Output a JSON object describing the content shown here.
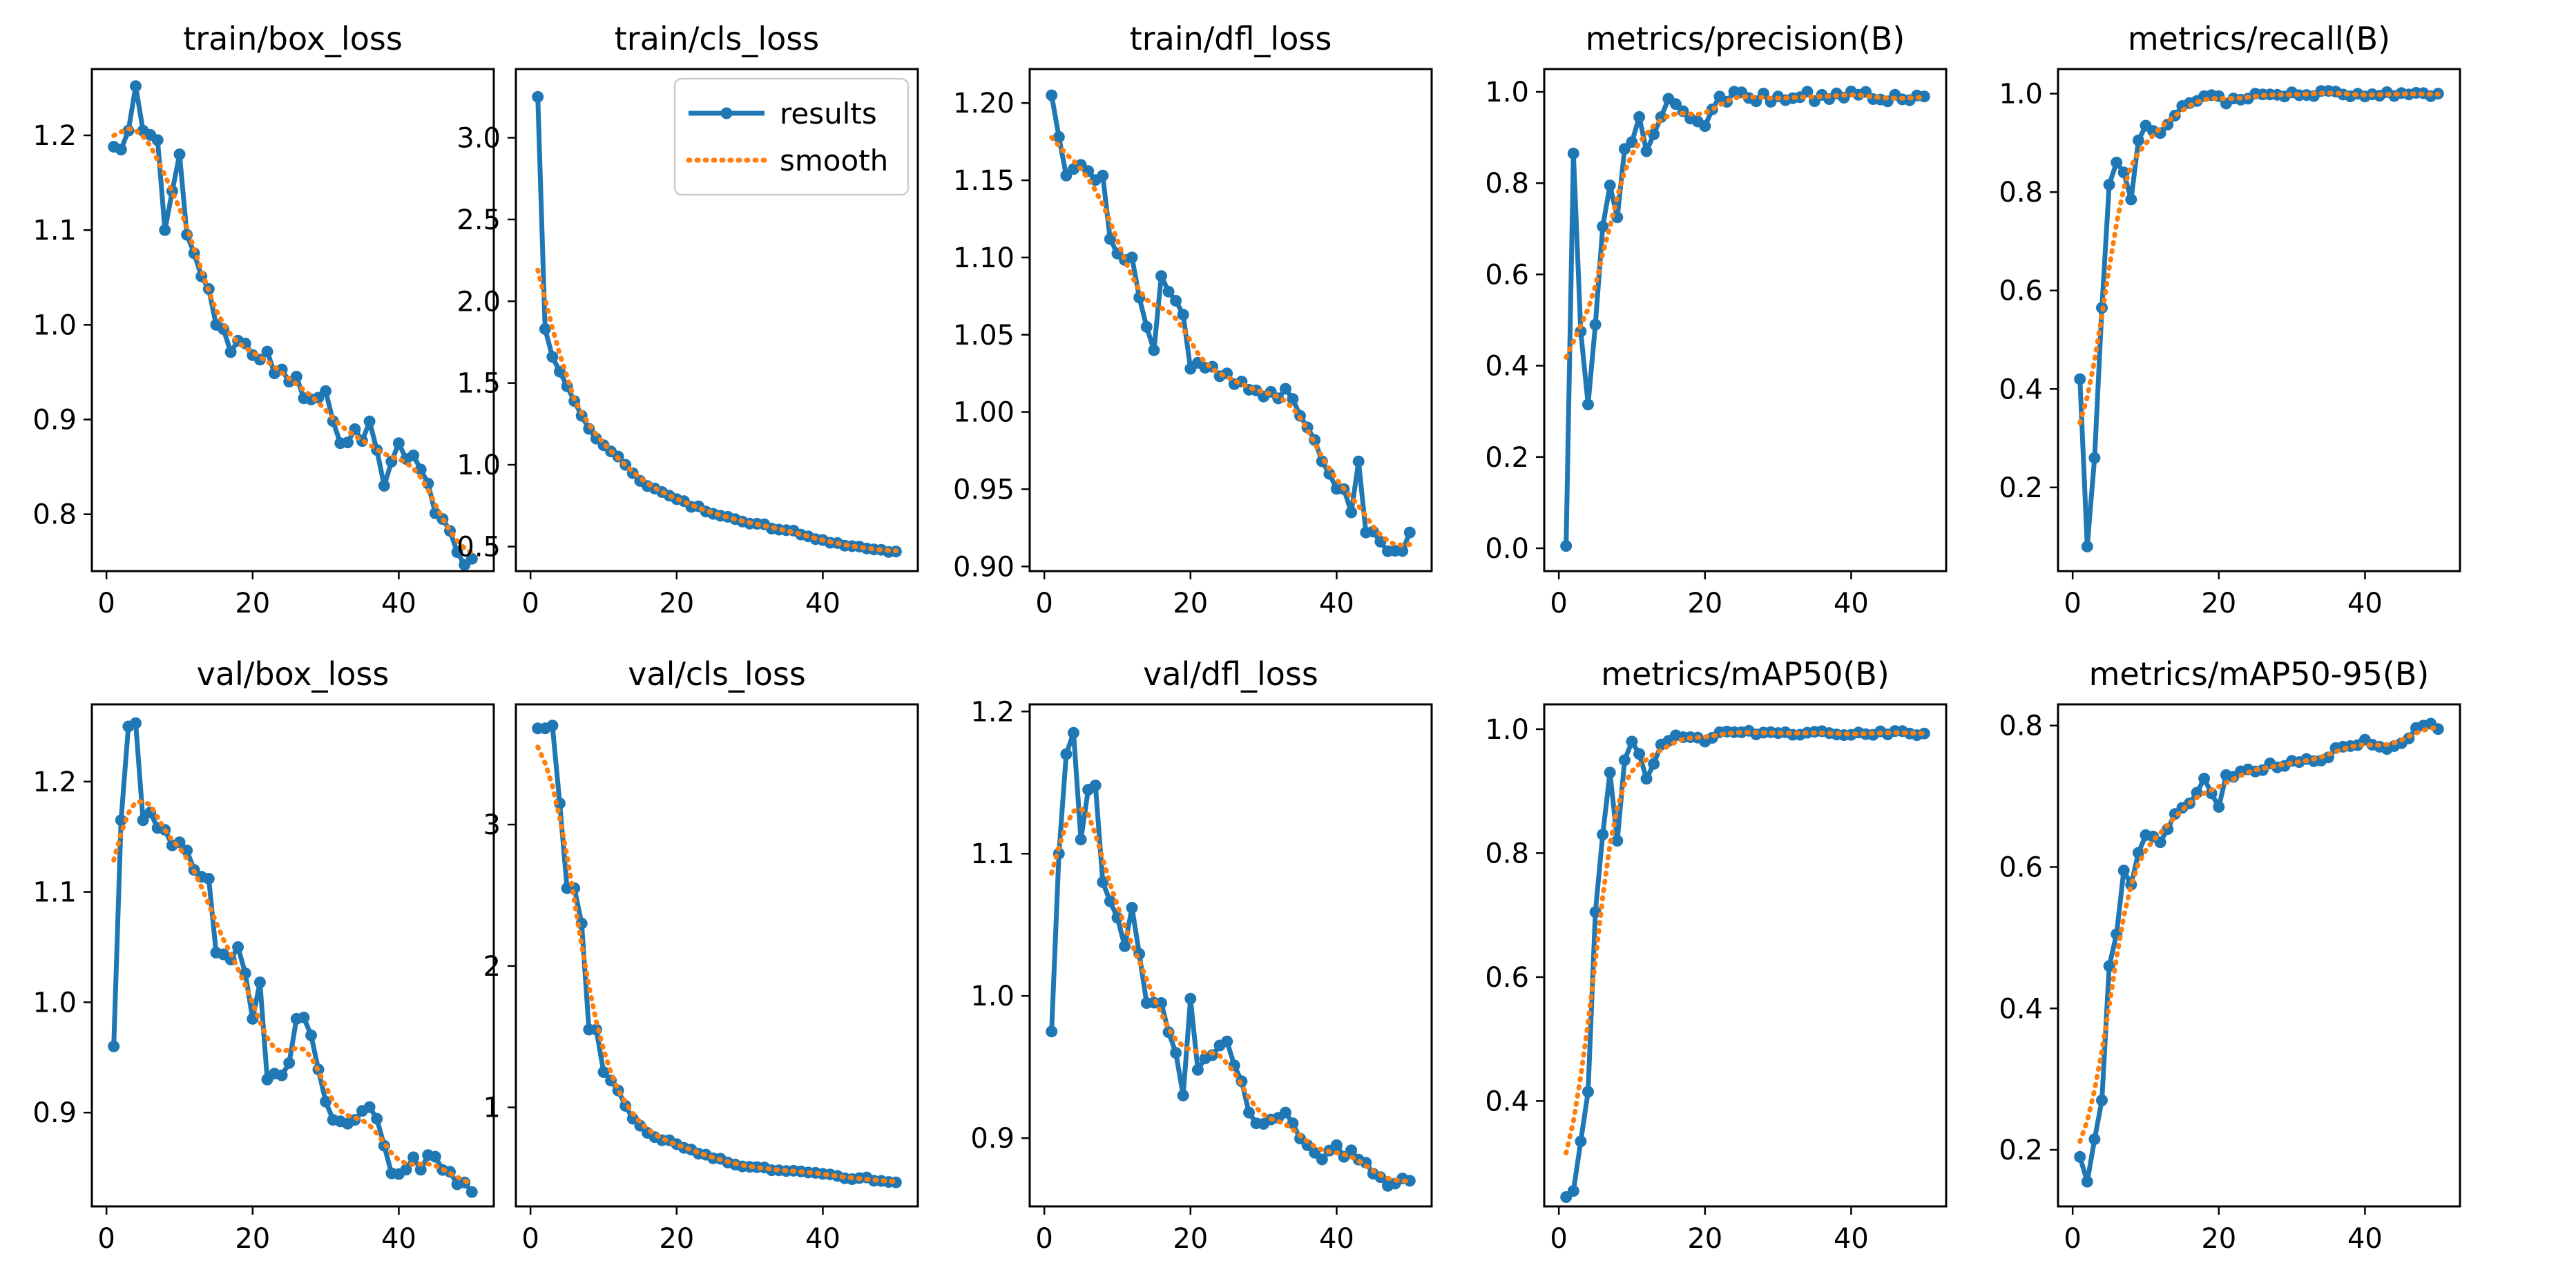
{
  "figure": {
    "rows": 2,
    "cols": 5
  },
  "legend": {
    "entries": [
      "results",
      "smooth"
    ],
    "placement": "top-right",
    "panel": "train/cls_loss"
  },
  "colors": {
    "results": "#1f77b4",
    "smooth": "#ff7f0e",
    "axes": "#000000",
    "background": "#ffffff"
  },
  "chart_data": [
    {
      "type": "line",
      "title": "train/box_loss",
      "xlabel": "",
      "ylabel": "",
      "xlim": [
        -2,
        53
      ],
      "ylim": [
        0.74,
        1.27
      ],
      "xticks": [
        0,
        20,
        40
      ],
      "yticks": [
        0.8,
        0.9,
        1.0,
        1.1,
        1.2
      ],
      "xtick_labels": [
        "0",
        "20",
        "40"
      ],
      "ytick_labels": [
        "0.8",
        "0.9",
        "1.0",
        "1.1",
        "1.2"
      ],
      "start": [
        1,
        1.188
      ],
      "end": [
        50,
        0.753
      ],
      "noise": 0.02,
      "smooth_offset": 0.0,
      "seed": 11,
      "anchors": [
        [
          2,
          1.185
        ],
        [
          3,
          1.205
        ],
        [
          4,
          1.252
        ],
        [
          5,
          1.205
        ],
        [
          7,
          1.195
        ],
        [
          8,
          1.1
        ],
        [
          10,
          1.18
        ],
        [
          11,
          1.095
        ],
        [
          15,
          1.0
        ],
        [
          25,
          0.94
        ],
        [
          30,
          0.93
        ],
        [
          32,
          0.875
        ],
        [
          36,
          0.898
        ],
        [
          38,
          0.83
        ],
        [
          40,
          0.875
        ],
        [
          46,
          0.795
        ],
        [
          48,
          0.76
        ]
      ]
    },
    {
      "type": "line",
      "title": "train/cls_loss",
      "xlabel": "",
      "ylabel": "",
      "xlim": [
        -2,
        53
      ],
      "ylim": [
        0.35,
        3.42
      ],
      "xticks": [
        0,
        20,
        40
      ],
      "yticks": [
        0.5,
        1.0,
        1.5,
        2.0,
        2.5,
        3.0
      ],
      "xtick_labels": [
        "0",
        "20",
        "40"
      ],
      "ytick_labels": [
        "0.5",
        "1.0",
        "1.5",
        "2.0",
        "2.5",
        "3.0"
      ],
      "start": [
        1,
        3.25
      ],
      "end": [
        50,
        0.47
      ],
      "noise": 0.012,
      "smooth_offset": 0.0,
      "seed": 12,
      "anchors": [
        [
          2,
          1.83
        ],
        [
          3,
          1.66
        ],
        [
          4,
          1.57
        ],
        [
          5,
          1.48
        ],
        [
          6,
          1.39
        ],
        [
          8,
          1.22
        ],
        [
          10,
          1.12
        ],
        [
          13,
          1.0
        ],
        [
          16,
          0.87
        ],
        [
          20,
          0.79
        ],
        [
          25,
          0.7
        ],
        [
          30,
          0.64
        ],
        [
          35,
          0.6
        ],
        [
          40,
          0.54
        ],
        [
          45,
          0.5
        ],
        [
          48,
          0.48
        ]
      ]
    },
    {
      "type": "line",
      "title": "train/dfl_loss",
      "xlabel": "",
      "ylabel": "",
      "xlim": [
        -2,
        53
      ],
      "ylim": [
        0.897,
        1.222
      ],
      "xticks": [
        0,
        20,
        40
      ],
      "yticks": [
        0.9,
        0.95,
        1.0,
        1.05,
        1.1,
        1.15,
        1.2
      ],
      "xtick_labels": [
        "0",
        "20",
        "40"
      ],
      "ytick_labels": [
        "0.90",
        "0.95",
        "1.00",
        "1.05",
        "1.10",
        "1.15",
        "1.20"
      ],
      "start": [
        1,
        1.205
      ],
      "end": [
        50,
        0.922
      ],
      "noise": 0.006,
      "smooth_offset": 0.0,
      "seed": 13,
      "anchors": [
        [
          2,
          1.178
        ],
        [
          3,
          1.153
        ],
        [
          5,
          1.16
        ],
        [
          8,
          1.153
        ],
        [
          9,
          1.112
        ],
        [
          12,
          1.1
        ],
        [
          15,
          1.04
        ],
        [
          16,
          1.088
        ],
        [
          19,
          1.063
        ],
        [
          20,
          1.028
        ],
        [
          25,
          1.025
        ],
        [
          30,
          1.01
        ],
        [
          33,
          1.015
        ],
        [
          36,
          0.99
        ],
        [
          39,
          0.96
        ],
        [
          41,
          0.95
        ],
        [
          42,
          0.935
        ],
        [
          43,
          0.968
        ],
        [
          44,
          0.922
        ],
        [
          49,
          0.91
        ]
      ]
    },
    {
      "type": "line",
      "title": "metrics/precision(B)",
      "xlabel": "",
      "ylabel": "",
      "xlim": [
        -2,
        53
      ],
      "ylim": [
        -0.05,
        1.05
      ],
      "xticks": [
        0,
        20,
        40
      ],
      "yticks": [
        0.0,
        0.2,
        0.4,
        0.6,
        0.8,
        1.0
      ],
      "xtick_labels": [
        "0",
        "20",
        "40"
      ],
      "ytick_labels": [
        "0.0",
        "0.2",
        "0.4",
        "0.6",
        "0.8",
        "1.0"
      ],
      "start": [
        1,
        0.005
      ],
      "end": [
        50,
        0.99
      ],
      "noise": 0.012,
      "smooth_offset": 0.0,
      "seed": 14,
      "anchors": [
        [
          2,
          0.865
        ],
        [
          3,
          0.475
        ],
        [
          4,
          0.315
        ],
        [
          5,
          0.49
        ],
        [
          6,
          0.705
        ],
        [
          7,
          0.795
        ],
        [
          8,
          0.725
        ],
        [
          9,
          0.875
        ],
        [
          10,
          0.89
        ],
        [
          11,
          0.945
        ],
        [
          12,
          0.87
        ],
        [
          15,
          0.985
        ],
        [
          20,
          0.925
        ],
        [
          22,
          0.99
        ],
        [
          30,
          0.99
        ],
        [
          50,
          0.99
        ]
      ]
    },
    {
      "type": "line",
      "title": "metrics/recall(B)",
      "xlabel": "",
      "ylabel": "",
      "xlim": [
        -2,
        53
      ],
      "ylim": [
        0.03,
        1.05
      ],
      "xticks": [
        0,
        20,
        40
      ],
      "yticks": [
        0.2,
        0.4,
        0.6,
        0.8,
        1.0
      ],
      "xtick_labels": [
        "0",
        "20",
        "40"
      ],
      "ytick_labels": [
        "0.2",
        "0.4",
        "0.6",
        "0.8",
        "1.0"
      ],
      "start": [
        1,
        0.42
      ],
      "end": [
        50,
        1.0
      ],
      "noise": 0.006,
      "smooth_offset": 0.0,
      "seed": 15,
      "anchors": [
        [
          2,
          0.08
        ],
        [
          3,
          0.26
        ],
        [
          4,
          0.565
        ],
        [
          5,
          0.815
        ],
        [
          6,
          0.86
        ],
        [
          7,
          0.84
        ],
        [
          8,
          0.785
        ],
        [
          9,
          0.905
        ],
        [
          10,
          0.935
        ],
        [
          12,
          0.92
        ],
        [
          15,
          0.975
        ],
        [
          18,
          0.995
        ],
        [
          20,
          0.995
        ],
        [
          21,
          0.98
        ],
        [
          25,
          1.0
        ],
        [
          50,
          1.0
        ]
      ]
    },
    {
      "type": "line",
      "title": "val/box_loss",
      "xlabel": "",
      "ylabel": "",
      "xlim": [
        -2,
        53
      ],
      "ylim": [
        0.815,
        1.27
      ],
      "xticks": [
        0,
        20,
        40
      ],
      "yticks": [
        0.9,
        1.0,
        1.1,
        1.2
      ],
      "xtick_labels": [
        "0",
        "20",
        "40"
      ],
      "ytick_labels": [
        "0.9",
        "1.0",
        "1.1",
        "1.2"
      ],
      "start": [
        1,
        0.96
      ],
      "end": [
        50,
        0.828
      ],
      "noise": 0.01,
      "smooth_offset": 0.0,
      "seed": 16,
      "anchors": [
        [
          2,
          1.165
        ],
        [
          3,
          1.25
        ],
        [
          4,
          1.253
        ],
        [
          5,
          1.165
        ],
        [
          6,
          1.172
        ],
        [
          7,
          1.158
        ],
        [
          10,
          1.145
        ],
        [
          12,
          1.12
        ],
        [
          14,
          1.112
        ],
        [
          15,
          1.045
        ],
        [
          18,
          1.05
        ],
        [
          20,
          0.985
        ],
        [
          21,
          1.018
        ],
        [
          22,
          0.93
        ],
        [
          25,
          0.945
        ],
        [
          26,
          0.985
        ],
        [
          28,
          0.97
        ],
        [
          30,
          0.91
        ],
        [
          33,
          0.89
        ],
        [
          36,
          0.905
        ],
        [
          38,
          0.87
        ],
        [
          39,
          0.845
        ],
        [
          45,
          0.86
        ],
        [
          48,
          0.835
        ],
        [
          50,
          0.828
        ]
      ]
    },
    {
      "type": "line",
      "title": "val/cls_loss",
      "xlabel": "",
      "ylabel": "",
      "xlim": [
        -2,
        53
      ],
      "ylim": [
        0.3,
        3.85
      ],
      "xticks": [
        0,
        20,
        40
      ],
      "yticks": [
        1,
        2,
        3
      ],
      "xtick_labels": [
        "0",
        "20",
        "40"
      ],
      "ytick_labels": [
        "1",
        "2",
        "3"
      ],
      "start": [
        1,
        3.68
      ],
      "end": [
        50,
        0.47
      ],
      "noise": 0.015,
      "smooth_offset": 0.0,
      "seed": 17,
      "anchors": [
        [
          2,
          3.68
        ],
        [
          3,
          3.7
        ],
        [
          4,
          3.15
        ],
        [
          5,
          2.55
        ],
        [
          6,
          2.55
        ],
        [
          7,
          2.3
        ],
        [
          8,
          1.55
        ],
        [
          9,
          1.55
        ],
        [
          10,
          1.25
        ],
        [
          12,
          1.12
        ],
        [
          14,
          0.92
        ],
        [
          16,
          0.82
        ],
        [
          20,
          0.74
        ],
        [
          25,
          0.64
        ],
        [
          30,
          0.58
        ],
        [
          35,
          0.55
        ],
        [
          40,
          0.53
        ],
        [
          45,
          0.5
        ],
        [
          48,
          0.48
        ]
      ]
    },
    {
      "type": "line",
      "title": "val/dfl_loss",
      "xlabel": "",
      "ylabel": "",
      "xlim": [
        -2,
        53
      ],
      "ylim": [
        0.852,
        1.205
      ],
      "xticks": [
        0,
        20,
        40
      ],
      "yticks": [
        0.9,
        1.0,
        1.1,
        1.2
      ],
      "xtick_labels": [
        "0",
        "20",
        "40"
      ],
      "ytick_labels": [
        "0.9",
        "1.0",
        "1.1",
        "1.2"
      ],
      "start": [
        1,
        0.975
      ],
      "end": [
        50,
        0.87
      ],
      "noise": 0.005,
      "smooth_offset": 0.0,
      "seed": 18,
      "anchors": [
        [
          2,
          1.1
        ],
        [
          3,
          1.17
        ],
        [
          4,
          1.185
        ],
        [
          5,
          1.11
        ],
        [
          6,
          1.145
        ],
        [
          7,
          1.148
        ],
        [
          8,
          1.08
        ],
        [
          10,
          1.055
        ],
        [
          11,
          1.035
        ],
        [
          12,
          1.062
        ],
        [
          14,
          0.995
        ],
        [
          16,
          0.995
        ],
        [
          18,
          0.96
        ],
        [
          19,
          0.93
        ],
        [
          20,
          0.998
        ],
        [
          21,
          0.948
        ],
        [
          25,
          0.968
        ],
        [
          27,
          0.94
        ],
        [
          28,
          0.918
        ],
        [
          30,
          0.91
        ],
        [
          33,
          0.918
        ],
        [
          36,
          0.895
        ],
        [
          38,
          0.885
        ],
        [
          40,
          0.895
        ],
        [
          45,
          0.875
        ],
        [
          48,
          0.868
        ]
      ]
    },
    {
      "type": "line",
      "title": "metrics/mAP50(B)",
      "xlabel": "",
      "ylabel": "",
      "xlim": [
        -2,
        53
      ],
      "ylim": [
        0.23,
        1.04
      ],
      "xticks": [
        0,
        20,
        40
      ],
      "yticks": [
        0.4,
        0.6,
        0.8,
        1.0
      ],
      "xtick_labels": [
        "0",
        "20",
        "40"
      ],
      "ytick_labels": [
        "0.4",
        "0.6",
        "0.8",
        "1.0"
      ],
      "start": [
        1,
        0.245
      ],
      "end": [
        50,
        0.993
      ],
      "noise": 0.004,
      "smooth_offset": 0.0,
      "seed": 19,
      "anchors": [
        [
          2,
          0.255
        ],
        [
          3,
          0.335
        ],
        [
          4,
          0.415
        ],
        [
          5,
          0.705
        ],
        [
          6,
          0.83
        ],
        [
          7,
          0.93
        ],
        [
          8,
          0.82
        ],
        [
          9,
          0.95
        ],
        [
          10,
          0.98
        ],
        [
          11,
          0.96
        ],
        [
          12,
          0.92
        ],
        [
          14,
          0.975
        ],
        [
          16,
          0.99
        ],
        [
          20,
          0.98
        ],
        [
          22,
          0.995
        ],
        [
          50,
          0.993
        ]
      ]
    },
    {
      "type": "line",
      "title": "metrics/mAP50-95(B)",
      "xlabel": "",
      "ylabel": "",
      "xlim": [
        -2,
        53
      ],
      "ylim": [
        0.12,
        0.83
      ],
      "xticks": [
        0,
        20,
        40
      ],
      "yticks": [
        0.2,
        0.4,
        0.6,
        0.8
      ],
      "xtick_labels": [
        "0",
        "20",
        "40"
      ],
      "ytick_labels": [
        "0.2",
        "0.4",
        "0.6",
        "0.8"
      ],
      "start": [
        1,
        0.19
      ],
      "end": [
        50,
        0.795
      ],
      "noise": 0.006,
      "smooth_offset": 0.0,
      "seed": 20,
      "anchors": [
        [
          2,
          0.155
        ],
        [
          3,
          0.215
        ],
        [
          4,
          0.27
        ],
        [
          5,
          0.46
        ],
        [
          6,
          0.505
        ],
        [
          7,
          0.595
        ],
        [
          8,
          0.575
        ],
        [
          9,
          0.62
        ],
        [
          10,
          0.645
        ],
        [
          12,
          0.635
        ],
        [
          14,
          0.675
        ],
        [
          16,
          0.69
        ],
        [
          18,
          0.725
        ],
        [
          20,
          0.685
        ],
        [
          21,
          0.73
        ],
        [
          25,
          0.735
        ],
        [
          30,
          0.75
        ],
        [
          35,
          0.755
        ],
        [
          37,
          0.77
        ],
        [
          40,
          0.78
        ],
        [
          42,
          0.77
        ],
        [
          45,
          0.775
        ],
        [
          48,
          0.8
        ],
        [
          50,
          0.795
        ]
      ]
    }
  ]
}
